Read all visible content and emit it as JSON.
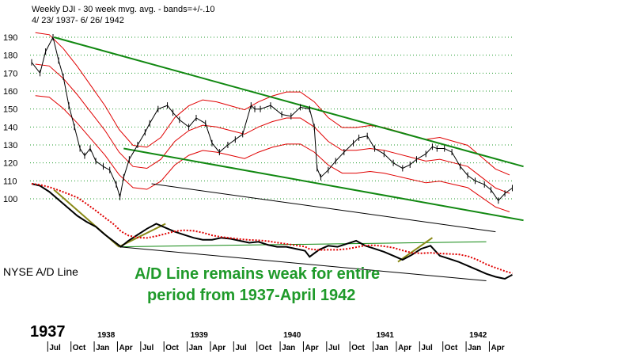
{
  "header": {
    "title": "Weekly DJI - 30 week mvg. avg. - bands=+/-.10",
    "date_range": "4/ 23/ 1937- 6/ 26/ 1942"
  },
  "labels": {
    "ad_line": "NYSE A/D Line",
    "annotation_line1": "A/D Line remains weak for entire",
    "annotation_line2": "period from 1937-April 1942",
    "first_year": "1937"
  },
  "colors": {
    "price": "#000000",
    "moving_average": "#e00000",
    "bands": "#e00000",
    "trend_channel": "#118811",
    "ad_line": "#000000",
    "annotation_text": "#1f9a2a",
    "gridline": "#1f9a2a"
  },
  "chart_data": {
    "type": "line",
    "title": "Weekly DJI - 30 week mvg. avg. - bands=+/-.10",
    "subtitle": "4/ 23/ 1937- 6/ 26/ 1942",
    "ylim": [
      90,
      190
    ],
    "y_ticks": [
      "190",
      "180",
      "170",
      "160",
      "150",
      "140",
      "130",
      "120",
      "110",
      "100"
    ],
    "grid": "horizontal dotted",
    "x_years": [
      "1937",
      "1938",
      "1939",
      "1940",
      "1941",
      "1942"
    ],
    "x_months": [
      "Jul",
      "Oct",
      "Jan",
      "Apr",
      "Jul",
      "Oct",
      "Jan",
      "Apr",
      "Jul",
      "Oct",
      "Jan",
      "Apr",
      "Jul",
      "Oct",
      "Jan",
      "Apr",
      "Jul",
      "Oct",
      "Jan",
      "Apr"
    ],
    "series": [
      {
        "name": "",
        "role": "DJI weekly",
        "x": [
          1937.31,
          1937.4,
          1937.46,
          1937.54,
          1937.6,
          1937.65,
          1937.71,
          1937.77,
          1937.83,
          1937.88,
          1937.94,
          1938.0,
          1938.08,
          1938.15,
          1938.22,
          1938.26,
          1938.3,
          1938.36,
          1938.45,
          1938.53,
          1938.58,
          1938.67,
          1938.77,
          1938.83,
          1938.9,
          1939.0,
          1939.08,
          1939.18,
          1939.25,
          1939.33,
          1939.42,
          1939.5,
          1939.58,
          1939.67,
          1939.71,
          1939.77,
          1939.88,
          1940.0,
          1940.1,
          1940.2,
          1940.3,
          1940.35,
          1940.38,
          1940.42,
          1940.5,
          1940.58,
          1940.67,
          1940.77,
          1940.83,
          1940.92,
          1941.0,
          1941.1,
          1941.2,
          1941.3,
          1941.38,
          1941.45,
          1941.55,
          1941.62,
          1941.67,
          1941.75,
          1941.83,
          1941.92,
          1942.0,
          1942.08,
          1942.18,
          1942.25,
          1942.33,
          1942.4,
          1942.48
        ],
        "values": [
          176,
          170,
          182,
          190,
          177,
          168,
          152,
          140,
          128,
          124,
          128,
          121,
          118,
          116,
          108,
          101,
          112,
          122,
          130,
          137,
          142,
          150,
          152,
          148,
          144,
          140,
          145,
          142,
          131,
          126,
          130,
          133,
          136,
          152,
          150,
          150,
          152,
          147,
          146,
          151,
          150,
          140,
          117,
          112,
          116,
          121,
          126,
          131,
          134,
          135,
          128,
          125,
          120,
          117,
          119,
          122,
          125,
          129,
          128,
          128,
          126,
          118,
          113,
          110,
          108,
          105,
          99,
          103,
          106
        ]
      },
      {
        "name": "",
        "role": "30 week moving average",
        "x": [
          1937.35,
          1937.5,
          1937.65,
          1937.8,
          1937.95,
          1938.1,
          1938.25,
          1938.4,
          1938.55,
          1938.7,
          1938.85,
          1939.0,
          1939.15,
          1939.3,
          1939.45,
          1939.6,
          1939.75,
          1939.9,
          1940.05,
          1940.2,
          1940.35,
          1940.5,
          1940.65,
          1940.8,
          1940.95,
          1941.1,
          1941.25,
          1941.4,
          1941.55,
          1941.7,
          1941.85,
          1942.0,
          1942.15,
          1942.3,
          1942.45
        ],
        "values": [
          175,
          174,
          167,
          158,
          148,
          138,
          126,
          118,
          117,
          122,
          132,
          138,
          141,
          140,
          138,
          136,
          140,
          143,
          145,
          145,
          140,
          132,
          127,
          127,
          128,
          127,
          125,
          123,
          121,
          122,
          120,
          118,
          112,
          106,
          103
        ]
      },
      {
        "name": "",
        "role": "NYSE A/D Line (unscaled, relative)",
        "x": [
          1937.31,
          1937.4,
          1937.5,
          1937.6,
          1937.7,
          1937.8,
          1937.9,
          1938.0,
          1938.1,
          1938.2,
          1938.27,
          1938.35,
          1938.45,
          1938.55,
          1938.65,
          1938.75,
          1938.85,
          1938.95,
          1939.05,
          1939.15,
          1939.25,
          1939.35,
          1939.45,
          1939.55,
          1939.65,
          1939.75,
          1939.85,
          1939.95,
          1940.05,
          1940.15,
          1940.25,
          1940.3,
          1940.4,
          1940.5,
          1940.6,
          1940.7,
          1940.8,
          1940.9,
          1941.0,
          1941.1,
          1941.2,
          1941.3,
          1941.4,
          1941.5,
          1941.6,
          1941.7,
          1941.8,
          1941.9,
          1942.0,
          1942.1,
          1942.2,
          1942.3,
          1942.4,
          1942.48
        ],
        "values": [
          98,
          96,
          90,
          82,
          74,
          66,
          60,
          55,
          47,
          40,
          35,
          41,
          47,
          53,
          58,
          54,
          50,
          47,
          44,
          42,
          42,
          44,
          43,
          41,
          39,
          40,
          37,
          35,
          35,
          33,
          31,
          25,
          32,
          36,
          35,
          38,
          41,
          36,
          33,
          30,
          26,
          22,
          27,
          33,
          36,
          26,
          23,
          20,
          16,
          12,
          8,
          5,
          3,
          7
        ]
      }
    ],
    "trend_lines": [
      {
        "color": "green",
        "role": "upper channel"
      },
      {
        "color": "green",
        "role": "lower channel"
      },
      {
        "color": "green",
        "role": "A/D support"
      },
      {
        "color": "black",
        "role": "A/D channel"
      }
    ]
  }
}
